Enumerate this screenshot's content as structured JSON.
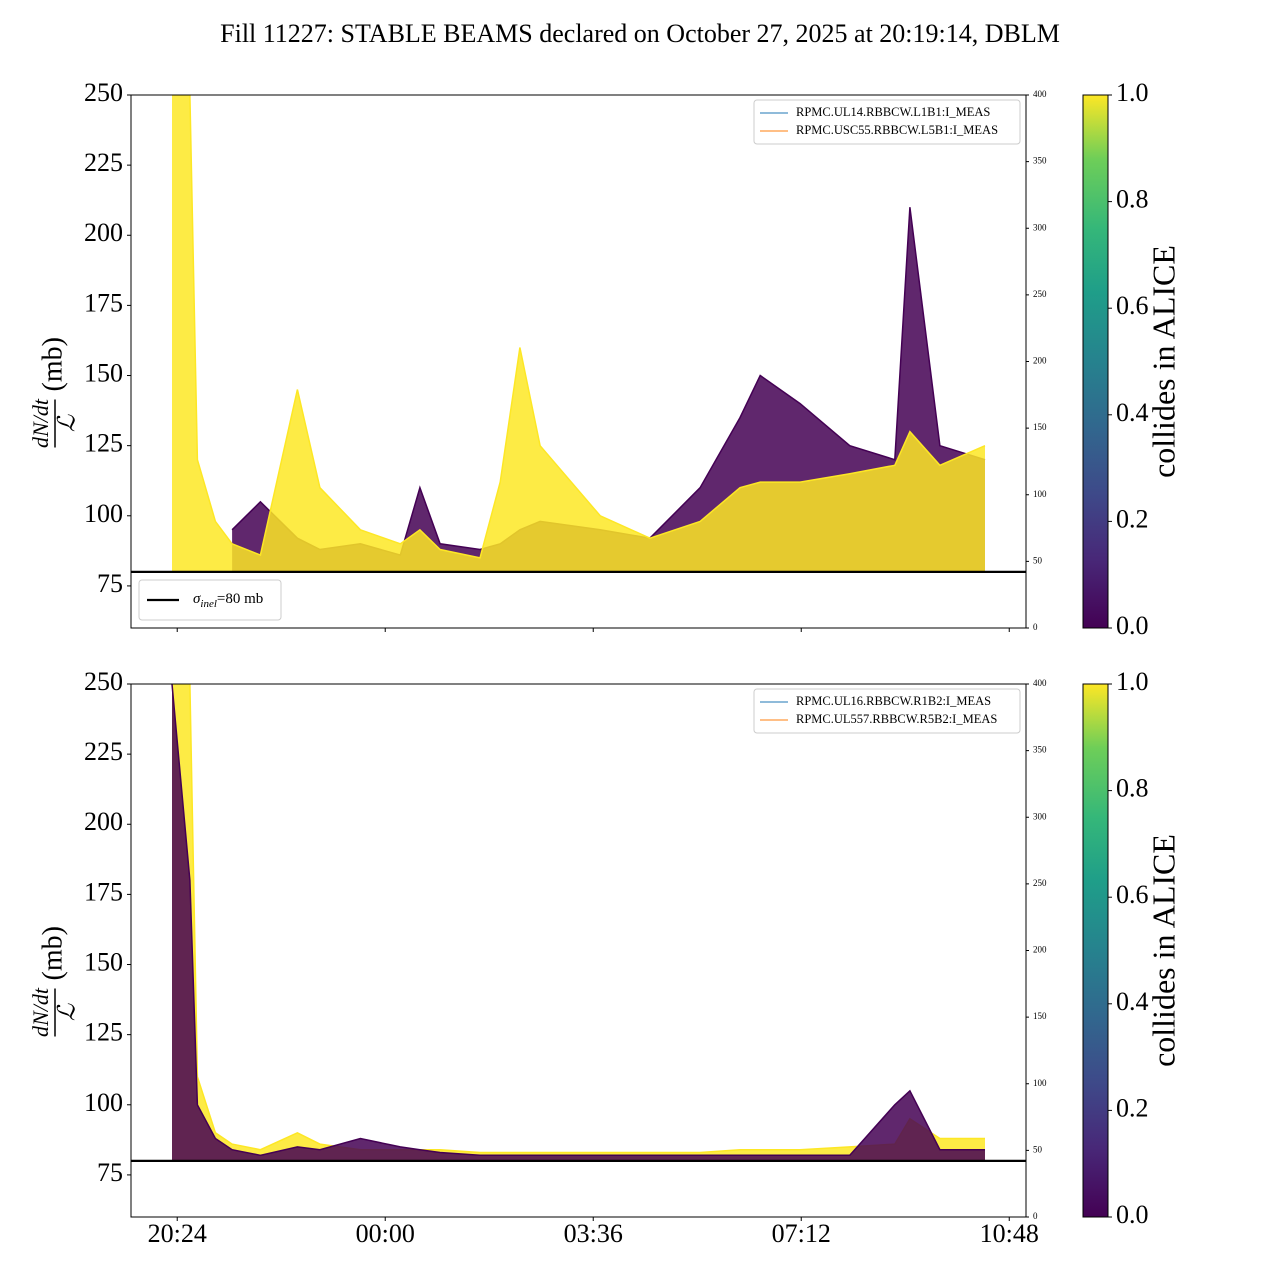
{
  "title": "Fill 11227: STABLE BEAMS declared on October 27, 2025 at 20:19:14, DBLM",
  "chart_data": [
    {
      "type": "line",
      "x": [
        20.31,
        20.62,
        20.75,
        21.06,
        21.35,
        21.84,
        22.48,
        22.87,
        23.57,
        24.26,
        24.6,
        24.95,
        25.64,
        25.99,
        26.33,
        26.68,
        27.72,
        28.58,
        29.45,
        30.14,
        30.49,
        31.18,
        32.04,
        32.82,
        33.08,
        33.6,
        34.38
      ],
      "series": [
        {
          "color": "#440154",
          "values": [
            null,
            null,
            null,
            null,
            95,
            105,
            92,
            88,
            90,
            86,
            110,
            90,
            88,
            90,
            95,
            98,
            95,
            92,
            110,
            135,
            150,
            140,
            125,
            120,
            210,
            125,
            120
          ]
        },
        {
          "color": "#fde725",
          "values": [
            250,
            250,
            120,
            98,
            90,
            86,
            145,
            110,
            95,
            90,
            95,
            88,
            85,
            112,
            160,
            125,
            100,
            92,
            98,
            110,
            112,
            112,
            115,
            118,
            130,
            118,
            125
          ]
        }
      ],
      "xlim": [
        19.6,
        35.09
      ],
      "xticks": [
        {
          "value": 20.4,
          "label": "20:24"
        },
        {
          "value": 24,
          "label": "00:00"
        },
        {
          "value": 27.6,
          "label": "03:36"
        },
        {
          "value": 31.2,
          "label": "07:12"
        },
        {
          "value": 34.8,
          "label": "10:48"
        }
      ],
      "xtick_labels": false,
      "ylim": [
        60,
        250
      ],
      "yticks": [
        75,
        100,
        125,
        150,
        175,
        200,
        225,
        250
      ],
      "y2lim": [
        0,
        400
      ],
      "y2ticks": [
        0,
        50,
        100,
        150,
        200,
        250,
        300,
        350,
        400
      ],
      "ylabel": {
        "numerator": "dN/dt",
        "denominator": "ℒ",
        "unit": "(mb)"
      },
      "legend": [
        {
          "label": "RPMC.UL14.RBBCW.L1B1:I_MEAS",
          "color": "#1f77b4"
        },
        {
          "label": "RPMC.USC55.RBBCW.L5B1:I_MEAS",
          "color": "#ff7f0e"
        }
      ],
      "legend_loc": "upper right",
      "hline": {
        "value": 80,
        "color": "#000000",
        "symbol": "σ",
        "sub": "inel",
        "rest": "=80 mb"
      },
      "hline_legend_loc": "lower left",
      "colorbar": {
        "label": "collides in ALICE",
        "lim": [
          0,
          1
        ],
        "ticks": [
          {
            "value": 0,
            "label": "0.0"
          },
          {
            "value": 0.2,
            "label": "0.2"
          },
          {
            "value": 0.4,
            "label": "0.4"
          },
          {
            "value": 0.6,
            "label": "0.6"
          },
          {
            "value": 0.8,
            "label": "0.8"
          },
          {
            "value": 1,
            "label": "1.0"
          }
        ]
      }
    },
    {
      "type": "line",
      "x": [
        20.31,
        20.62,
        20.75,
        21.06,
        21.35,
        21.84,
        22.48,
        22.87,
        23.57,
        24.26,
        24.6,
        24.95,
        25.64,
        25.99,
        26.33,
        26.68,
        27.72,
        28.58,
        29.45,
        30.14,
        30.49,
        31.18,
        32.04,
        32.82,
        33.08,
        33.6,
        34.38
      ],
      "series": [
        {
          "color": "#fde725",
          "values": [
            250,
            250,
            110,
            90,
            86,
            84,
            90,
            86,
            84,
            84,
            84,
            84,
            83,
            83,
            83,
            83,
            83,
            83,
            83,
            84,
            84,
            84,
            85,
            86,
            95,
            88,
            88
          ]
        },
        {
          "color": "#440154",
          "values": [
            250,
            180,
            100,
            88,
            84,
            82,
            85,
            84,
            88,
            85,
            84,
            83,
            82,
            82,
            82,
            82,
            82,
            82,
            82,
            82,
            82,
            82,
            82,
            100,
            105,
            84,
            84
          ]
        }
      ],
      "xlim": [
        19.6,
        35.09
      ],
      "xticks": [
        {
          "value": 20.4,
          "label": "20:24"
        },
        {
          "value": 24,
          "label": "00:00"
        },
        {
          "value": 27.6,
          "label": "03:36"
        },
        {
          "value": 31.2,
          "label": "07:12"
        },
        {
          "value": 34.8,
          "label": "10:48"
        }
      ],
      "xtick_labels": true,
      "ylim": [
        60,
        250
      ],
      "yticks": [
        75,
        100,
        125,
        150,
        175,
        200,
        225,
        250
      ],
      "y2lim": [
        0,
        400
      ],
      "y2ticks": [
        0,
        50,
        100,
        150,
        200,
        250,
        300,
        350,
        400
      ],
      "ylabel": {
        "numerator": "dN/dt",
        "denominator": "ℒ",
        "unit": "(mb)"
      },
      "legend": [
        {
          "label": "RPMC.UL16.RBBCW.R1B2:I_MEAS",
          "color": "#1f77b4"
        },
        {
          "label": "RPMC.UL557.RBBCW.R5B2:I_MEAS",
          "color": "#ff7f0e"
        }
      ],
      "legend_loc": "upper right",
      "hline": {
        "value": 80,
        "color": "#000000"
      },
      "colorbar": {
        "label": "collides in ALICE",
        "lim": [
          0,
          1
        ],
        "ticks": [
          {
            "value": 0,
            "label": "0.0"
          },
          {
            "value": 0.2,
            "label": "0.2"
          },
          {
            "value": 0.4,
            "label": "0.4"
          },
          {
            "value": 0.6,
            "label": "0.6"
          },
          {
            "value": 0.8,
            "label": "0.8"
          },
          {
            "value": 1,
            "label": "1.0"
          }
        ]
      }
    }
  ]
}
